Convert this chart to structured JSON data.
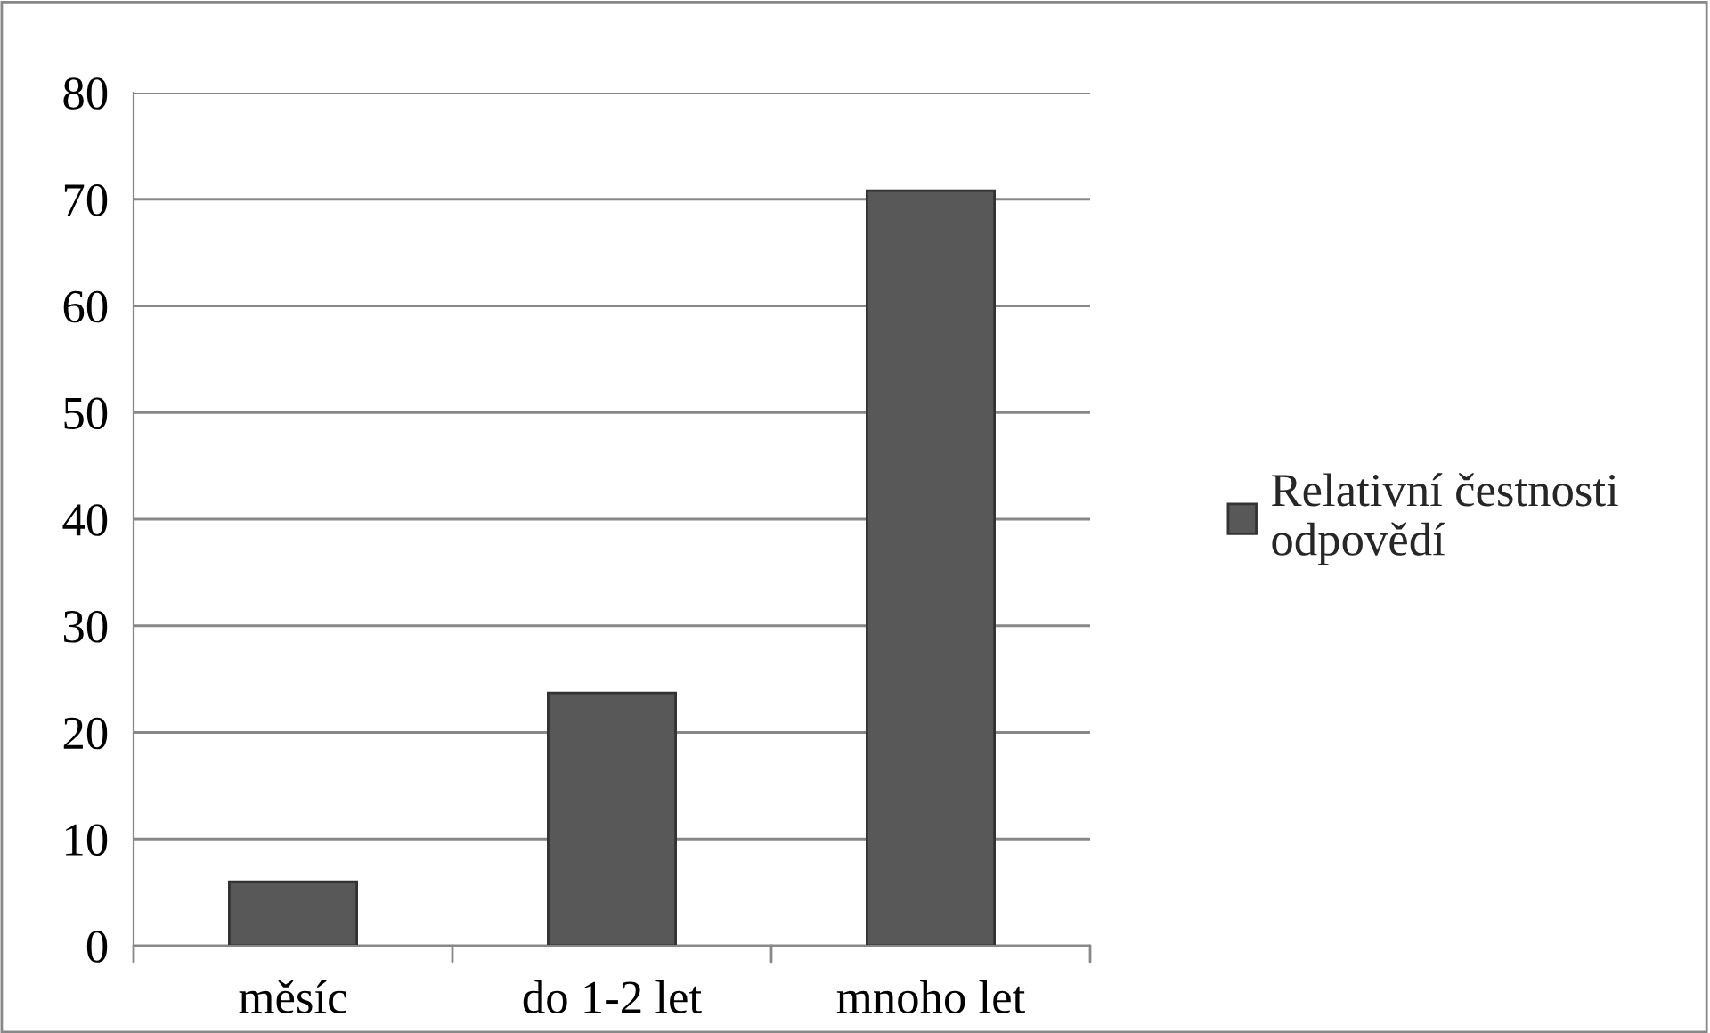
{
  "chart_data": {
    "type": "bar",
    "categories": [
      "měsíc",
      "do 1-2 let",
      "mnoho let"
    ],
    "series": [
      {
        "name": "Relativní čestnosti odpovědí",
        "color": "#585858",
        "values": [
          6,
          23.7,
          70.8
        ]
      }
    ],
    "ylim": [
      0,
      80
    ],
    "yticks": [
      0,
      10,
      20,
      30,
      40,
      50,
      60,
      70,
      80
    ],
    "grid": "y",
    "legend": "right"
  }
}
